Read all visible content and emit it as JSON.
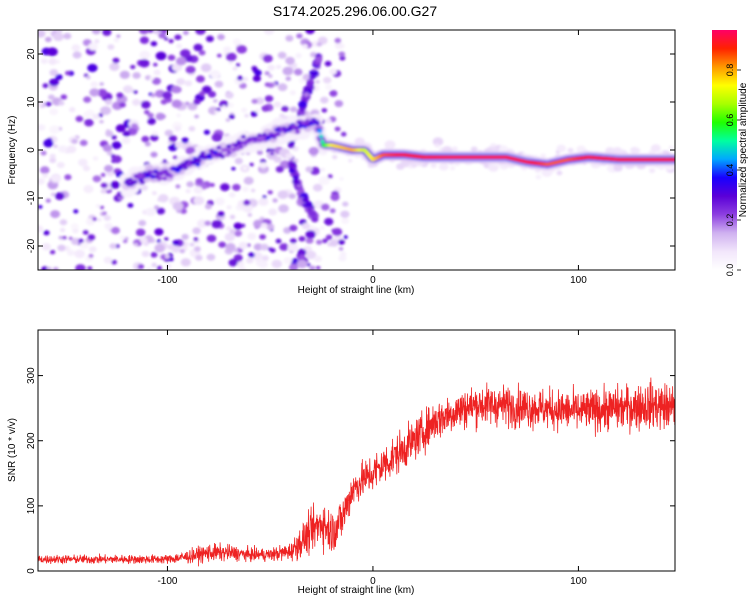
{
  "title": "S174.2025.296.06.00.G27",
  "colorbar": {
    "label": "Normalized spectral amplitude",
    "ticks": [
      "0.0",
      "0.2",
      "0.4",
      "0.6",
      "0.8"
    ],
    "range": [
      0,
      0.96
    ],
    "colors": [
      "#ffffff",
      "#f2e6fb",
      "#cfb1f0",
      "#8d3fe0",
      "#5a00d8",
      "#1800ff",
      "#00a8ff",
      "#00ffa0",
      "#20ff00",
      "#a8ff00",
      "#ffff00",
      "#ff9900",
      "#ff2200",
      "#ff0066"
    ]
  },
  "chart_data": [
    {
      "type": "heatmap",
      "xlabel": "Height of straight line (km)",
      "ylabel": "Frequency (Hz)",
      "xlim": [
        -163,
        147
      ],
      "ylim": [
        -25,
        25
      ],
      "xticks": [
        "-100",
        "0",
        "100"
      ],
      "xtick_values": [
        -100,
        0,
        100
      ],
      "yticks": [
        "-20",
        "-10",
        "0",
        "10",
        "20"
      ],
      "ytick_values": [
        -20,
        -10,
        0,
        10,
        20
      ],
      "ridge": {
        "x": [
          -120,
          -110,
          -100,
          -90,
          -80,
          -70,
          -60,
          -50,
          -44,
          -35,
          -28,
          -24,
          -20,
          -10,
          -4,
          0,
          5,
          15,
          25,
          40,
          55,
          65,
          75,
          85,
          95,
          105,
          120,
          135,
          147
        ],
        "frequency": [
          -7,
          -5,
          -5,
          -3,
          -1,
          0,
          2,
          3,
          4,
          5,
          6,
          1,
          1,
          0,
          0,
          -2,
          -1,
          -1,
          -1.5,
          -1.5,
          -1.5,
          -1.5,
          -2.5,
          -3,
          -2,
          -1.5,
          -2,
          -2,
          -2
        ],
        "amplitude": [
          0.25,
          0.3,
          0.3,
          0.3,
          0.3,
          0.25,
          0.25,
          0.3,
          0.3,
          0.3,
          0.3,
          0.55,
          0.75,
          0.8,
          0.7,
          0.75,
          0.85,
          0.9,
          0.9,
          0.92,
          0.92,
          0.92,
          0.92,
          0.85,
          0.85,
          0.9,
          0.92,
          0.92,
          0.92
        ]
      },
      "branches": [
        {
          "x": [
            -40,
            -32,
            -26
          ],
          "frequency": [
            1,
            12,
            20
          ],
          "amplitude": 0.3
        },
        {
          "x": [
            -40,
            -34,
            -28
          ],
          "frequency": [
            -3,
            -10,
            -14
          ],
          "amplitude": 0.3
        }
      ]
    },
    {
      "type": "line",
      "xlabel": "Height of straight line (km)",
      "ylabel": "SNR (10 * v/v)",
      "xlim": [
        -163,
        147
      ],
      "ylim": [
        0,
        370
      ],
      "xticks": [
        "-100",
        "0",
        "100"
      ],
      "xtick_values": [
        -100,
        0,
        100
      ],
      "yticks": [
        "0",
        "100",
        "200",
        "300"
      ],
      "ytick_values": [
        0,
        100,
        200,
        300
      ],
      "series": [
        {
          "name": "SNR",
          "color": "#ee2222",
          "envelope_x": [
            -163,
            -100,
            -90,
            -80,
            -70,
            -60,
            -50,
            -40,
            -35,
            -30,
            -25,
            -20,
            -15,
            -10,
            -5,
            0,
            10,
            20,
            30,
            40,
            50,
            60,
            80,
            100,
            120,
            135,
            147
          ],
          "envelope_mean": [
            18,
            18,
            22,
            28,
            28,
            25,
            25,
            30,
            45,
            60,
            75,
            60,
            80,
            125,
            140,
            150,
            175,
            200,
            230,
            245,
            255,
            255,
            250,
            245,
            250,
            255,
            250
          ],
          "envelope_spread": [
            12,
            12,
            18,
            25,
            22,
            18,
            18,
            25,
            45,
            55,
            65,
            60,
            60,
            50,
            50,
            55,
            55,
            55,
            55,
            55,
            55,
            55,
            55,
            55,
            60,
            65,
            65
          ]
        }
      ]
    }
  ]
}
